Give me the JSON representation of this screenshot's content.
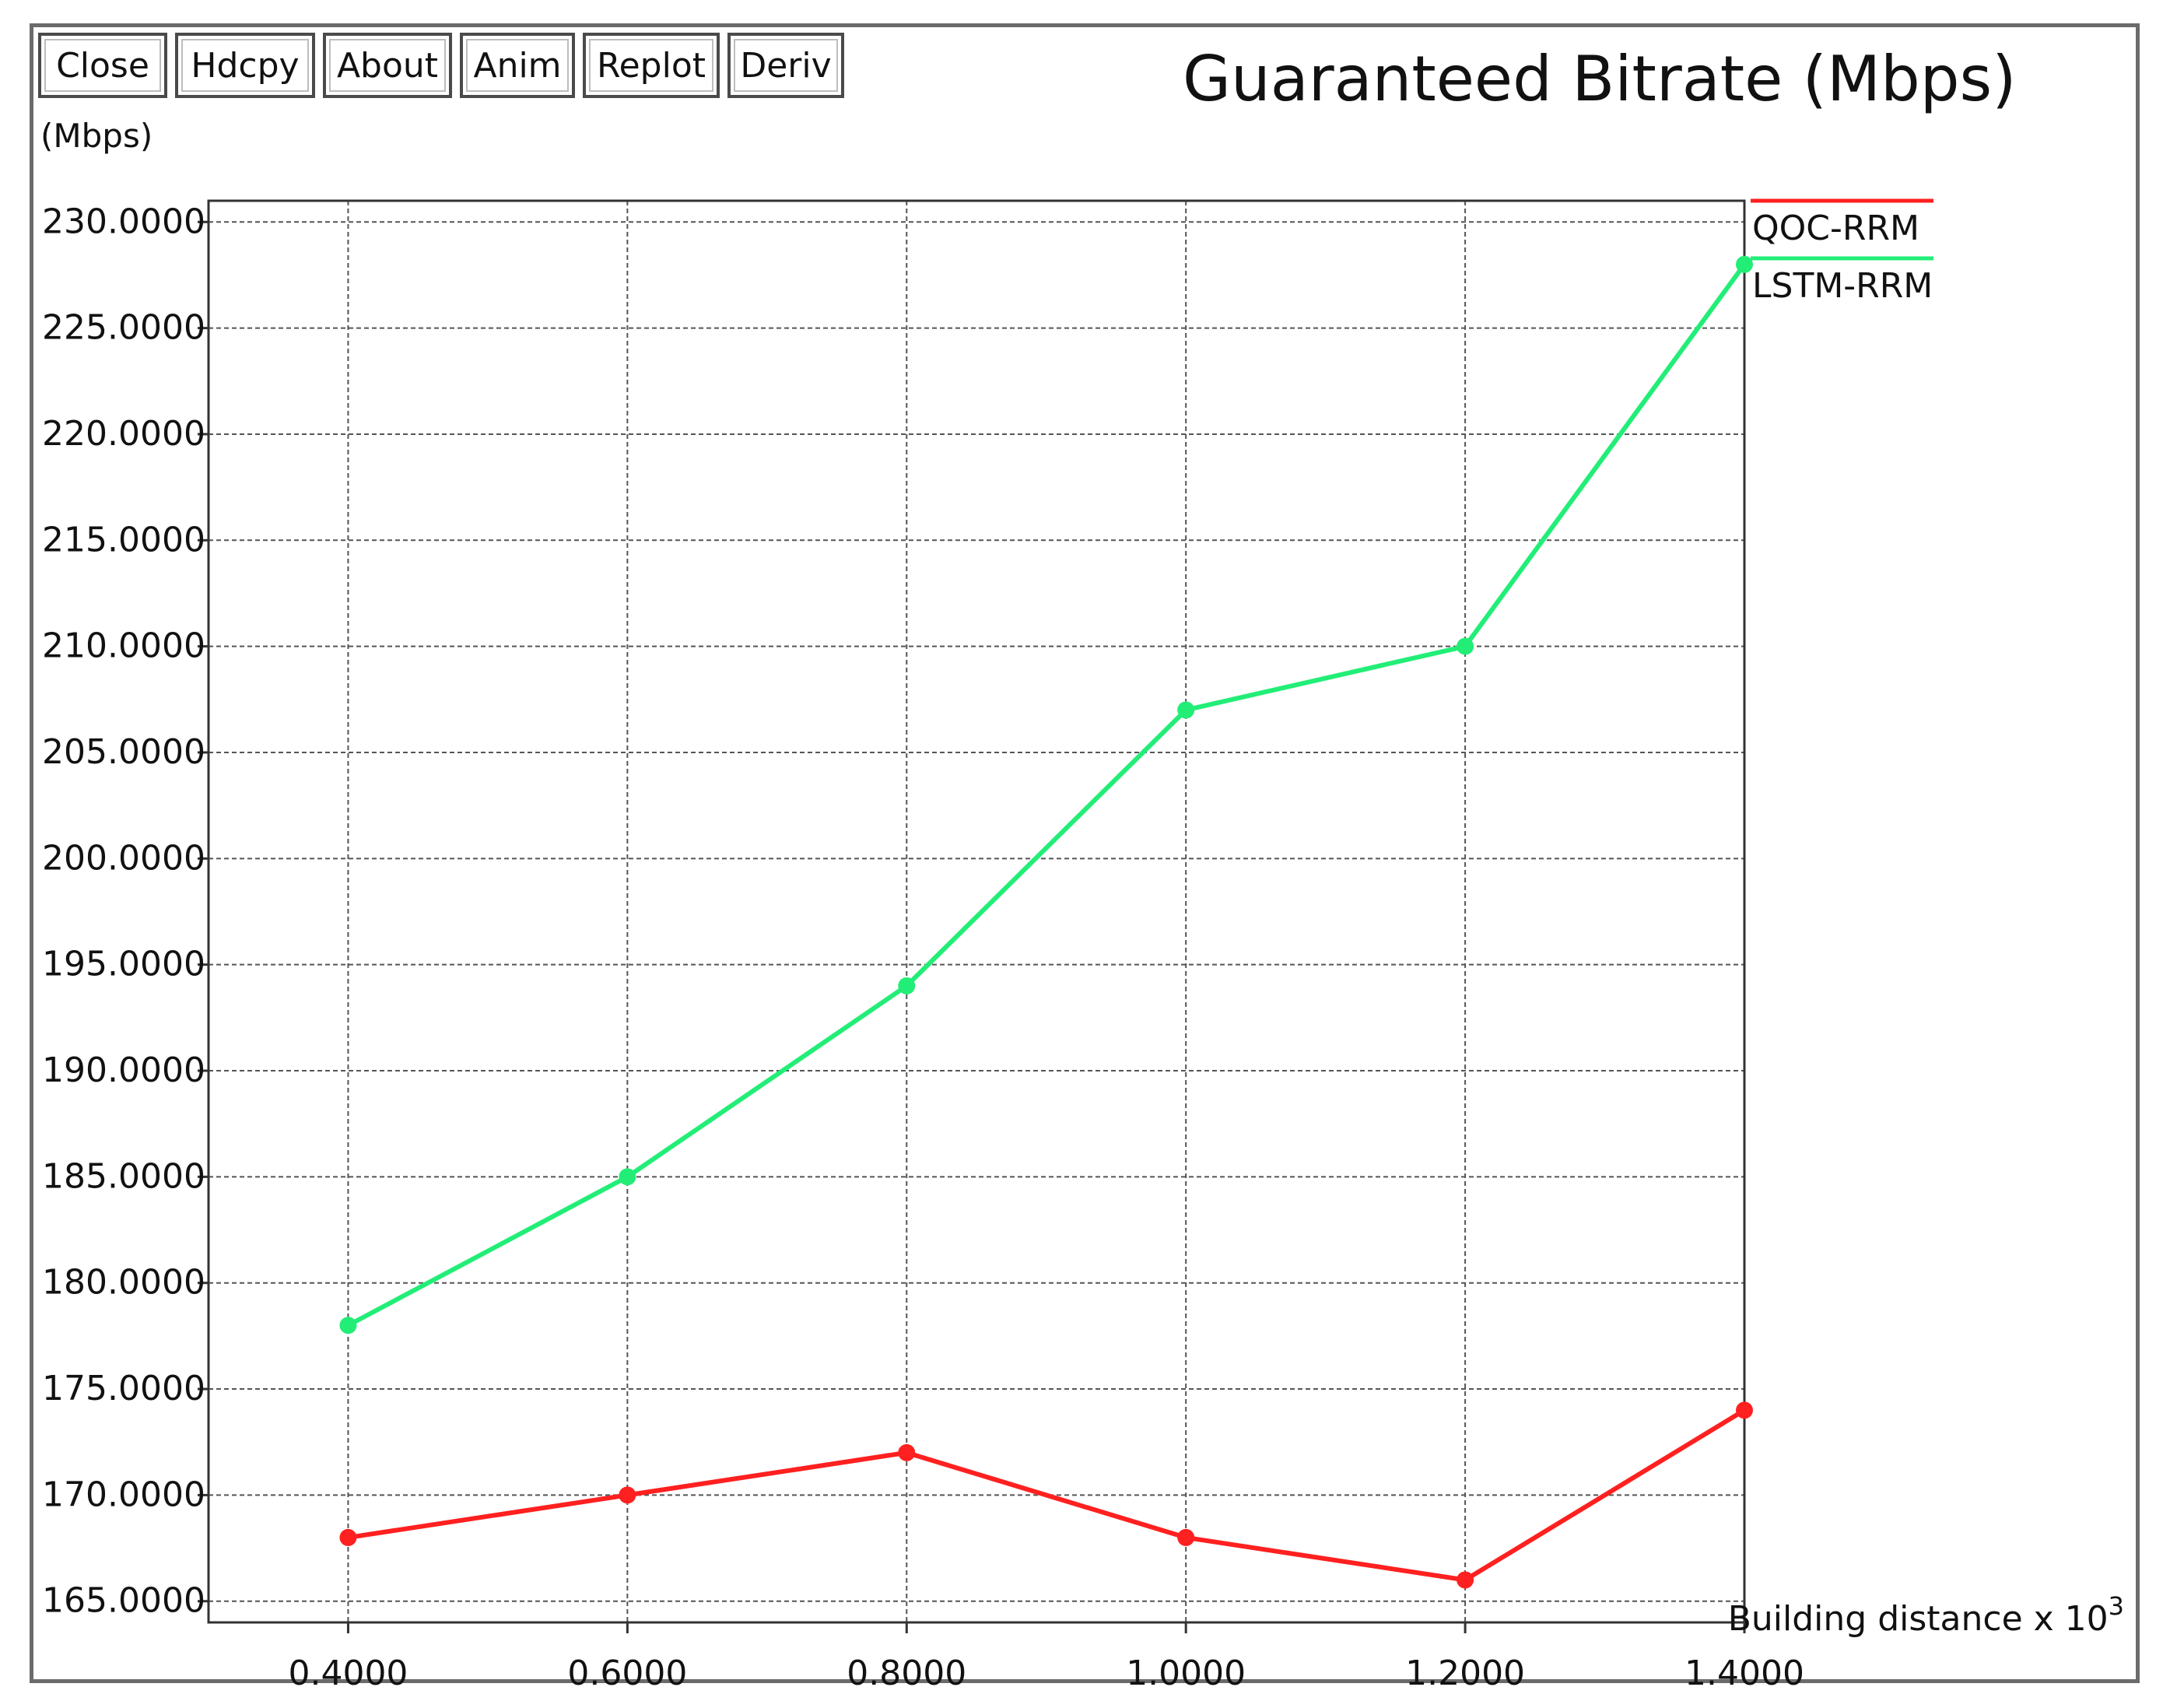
{
  "toolbar": {
    "close_label": "Close",
    "hdcpy_label": "Hdcpy",
    "about_label": "About",
    "anim_label": "Anim",
    "replot_label": "Replot",
    "deriv_label": "Deriv"
  },
  "chart_data": {
    "type": "line",
    "title": "Guaranteed Bitrate (Mbps)",
    "ylabel": "(Mbps)",
    "xlabel_text": "Building distance x 10",
    "xlabel_exponent": "3",
    "x": [
      0.4,
      0.6,
      0.8,
      1.0,
      1.2,
      1.4
    ],
    "x_tick_labels": [
      "0.4000",
      "0.6000",
      "0.8000",
      "1.0000",
      "1.2000",
      "1.4000"
    ],
    "y_ticks": [
      165,
      170,
      175,
      180,
      185,
      190,
      195,
      200,
      205,
      210,
      215,
      220,
      225,
      230
    ],
    "y_tick_labels": [
      "165.0000",
      "170.0000",
      "175.0000",
      "180.0000",
      "185.0000",
      "190.0000",
      "195.0000",
      "200.0000",
      "205.0000",
      "210.0000",
      "215.0000",
      "220.0000",
      "225.0000",
      "230.0000"
    ],
    "xlim": [
      0.3,
      1.4
    ],
    "ylim": [
      164,
      231
    ],
    "grid": true,
    "legend_position": "right-top",
    "series": [
      {
        "name": "QOC-RRM",
        "color": "#ff2020",
        "values": [
          168,
          170,
          172,
          168,
          166,
          174
        ]
      },
      {
        "name": "LSTM-RRM",
        "color": "#22ee77",
        "values": [
          178,
          185,
          194,
          207,
          210,
          228
        ]
      }
    ]
  }
}
